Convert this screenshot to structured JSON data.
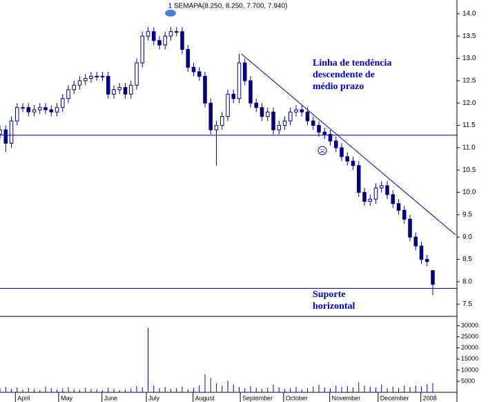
{
  "chart_data": {
    "type": "candlestick",
    "title": "1 SEMAPA(8.250, 8.250, 7.700, 7.940)",
    "color": "#000080",
    "x": [
      0,
      1,
      2,
      3,
      4,
      5,
      6,
      7,
      8,
      9,
      10,
      11,
      12,
      13,
      14,
      15,
      16,
      17,
      18,
      19,
      20,
      21,
      22,
      23,
      24,
      25,
      26,
      27,
      28,
      29,
      30,
      31,
      32,
      33,
      34,
      35,
      36,
      37,
      38,
      39,
      40,
      41,
      42,
      43,
      44,
      45,
      46,
      47,
      48,
      49,
      50,
      51,
      52,
      53,
      54,
      55,
      56,
      57,
      58,
      59,
      60,
      61,
      62,
      63,
      64,
      65,
      66,
      67,
      68,
      69,
      70,
      71,
      72,
      73,
      74,
      75,
      76
    ],
    "open": [
      11.3,
      11.4,
      11.1,
      11.6,
      11.9,
      11.9,
      11.8,
      11.85,
      11.9,
      11.85,
      11.8,
      11.9,
      12.1,
      12.3,
      12.4,
      12.5,
      12.55,
      12.6,
      12.6,
      12.6,
      12.2,
      12.3,
      12.35,
      12.2,
      12.4,
      12.9,
      13.5,
      13.6,
      13.4,
      13.3,
      13.5,
      13.6,
      13.6,
      13.2,
      12.8,
      12.7,
      12.6,
      12.0,
      11.4,
      11.5,
      11.7,
      12.2,
      12.1,
      12.9,
      12.5,
      12.0,
      11.9,
      11.7,
      11.8,
      11.4,
      11.5,
      11.6,
      11.8,
      11.85,
      11.8,
      11.6,
      11.5,
      11.35,
      11.3,
      11.15,
      11.0,
      10.8,
      10.7,
      10.6,
      10.0,
      9.8,
      9.85,
      10.1,
      10.15,
      9.95,
      9.75,
      9.6,
      9.4,
      9.0,
      8.8,
      8.5,
      8.25
    ],
    "high": [
      11.5,
      11.5,
      11.7,
      12.0,
      12.0,
      12.0,
      11.95,
      12.0,
      12.0,
      11.95,
      12.0,
      12.2,
      12.4,
      12.5,
      12.6,
      12.65,
      12.7,
      12.7,
      12.7,
      12.7,
      12.4,
      12.45,
      12.45,
      12.5,
      13.0,
      13.6,
      13.7,
      13.7,
      13.5,
      13.6,
      13.7,
      13.7,
      13.7,
      13.3,
      12.9,
      12.8,
      12.7,
      12.1,
      11.6,
      11.8,
      12.3,
      12.3,
      13.1,
      13.0,
      12.6,
      12.1,
      12.0,
      11.9,
      11.9,
      11.6,
      11.7,
      11.9,
      11.95,
      11.95,
      11.9,
      11.7,
      11.6,
      11.45,
      11.4,
      11.25,
      11.1,
      10.9,
      10.8,
      10.7,
      10.1,
      9.95,
      10.2,
      10.25,
      10.25,
      10.05,
      9.85,
      9.7,
      9.5,
      9.1,
      8.9,
      8.6,
      8.25
    ],
    "low": [
      11.2,
      10.9,
      11.0,
      11.5,
      11.8,
      11.7,
      11.7,
      11.75,
      11.75,
      11.7,
      11.7,
      11.8,
      12.0,
      12.2,
      12.3,
      12.4,
      12.45,
      12.5,
      12.5,
      12.1,
      12.1,
      12.2,
      12.1,
      12.1,
      12.3,
      12.8,
      13.4,
      13.3,
      13.2,
      13.2,
      13.4,
      13.5,
      13.1,
      12.7,
      12.6,
      12.5,
      11.9,
      11.3,
      10.6,
      11.4,
      11.6,
      12.0,
      12.0,
      12.4,
      11.9,
      11.8,
      11.6,
      11.6,
      11.3,
      11.3,
      11.4,
      11.5,
      11.7,
      11.7,
      11.5,
      11.4,
      11.25,
      11.2,
      11.05,
      10.9,
      10.7,
      10.6,
      10.5,
      9.9,
      9.7,
      9.7,
      9.75,
      10.0,
      9.85,
      9.65,
      9.5,
      9.3,
      8.9,
      8.7,
      8.4,
      8.35,
      7.7
    ],
    "close": [
      11.4,
      11.1,
      11.6,
      11.9,
      11.9,
      11.8,
      11.85,
      11.9,
      11.85,
      11.8,
      11.9,
      12.1,
      12.3,
      12.4,
      12.5,
      12.55,
      12.6,
      12.6,
      12.6,
      12.2,
      12.3,
      12.35,
      12.2,
      12.4,
      12.9,
      13.5,
      13.6,
      13.4,
      13.3,
      13.5,
      13.6,
      13.6,
      13.2,
      12.8,
      12.7,
      12.6,
      12.0,
      11.4,
      11.5,
      11.7,
      12.2,
      12.1,
      12.9,
      12.5,
      12.0,
      11.9,
      11.7,
      11.8,
      11.4,
      11.5,
      11.6,
      11.8,
      11.85,
      11.8,
      11.6,
      11.5,
      11.35,
      11.3,
      11.15,
      11.0,
      10.8,
      10.7,
      10.6,
      10.0,
      9.8,
      9.85,
      10.1,
      10.15,
      9.95,
      9.75,
      9.6,
      9.4,
      9.0,
      8.8,
      8.5,
      8.45,
      7.94
    ],
    "volume": [
      1800,
      2500,
      1500,
      2200,
      1200,
      2000,
      1500,
      1000,
      2600,
      1800,
      1200,
      1700,
      2300,
      1500,
      1200,
      2000,
      1600,
      1400,
      900,
      2100,
      1500,
      1000,
      1300,
      1700,
      2800,
      2200,
      29000,
      3000,
      1800,
      2400,
      1500,
      1900,
      2600,
      1400,
      2000,
      3200,
      8200,
      6500,
      4000,
      3000,
      5200,
      3500,
      2400,
      1800,
      2800,
      2100,
      1600,
      2000,
      3500,
      2200,
      1500,
      1800,
      2500,
      1400,
      1900,
      2600,
      3400,
      2200,
      1800,
      3000,
      2500,
      2800,
      2200,
      4500,
      3000,
      2600,
      2100,
      3500,
      1800,
      2600,
      2000,
      3100,
      2400,
      3000,
      2700,
      3800,
      4200
    ],
    "xlim": [
      0,
      80
    ],
    "xticks": [
      {
        "value": 2.7,
        "label": "April"
      },
      {
        "value": 10.3,
        "label": "May"
      },
      {
        "value": 17.9,
        "label": "June"
      },
      {
        "value": 25.7,
        "label": "July"
      },
      {
        "value": 33.9,
        "label": "August"
      },
      {
        "value": 42.2,
        "label": "September"
      },
      {
        "value": 49.8,
        "label": "October"
      },
      {
        "value": 57.9,
        "label": "November"
      },
      {
        "value": 66.4,
        "label": "December"
      },
      {
        "value": 73.9,
        "label": "2008"
      }
    ],
    "ylim": [
      7.24,
      14.23
    ],
    "yticks": [
      {
        "value": 14,
        "label": "14.0"
      },
      13.5,
      {
        "value": 13,
        "label": "13.0"
      },
      12.5,
      {
        "value": 12,
        "label": "12.0"
      },
      11.5,
      {
        "value": 11,
        "label": "11.0"
      },
      10.5,
      {
        "value": 10,
        "label": "10.0"
      },
      9.5,
      {
        "value": 9,
        "label": "9.0"
      },
      8.5,
      {
        "value": 8,
        "label": "8.0"
      },
      7.5
    ],
    "y2lim": [
      0,
      33000
    ],
    "y2ticks": [
      30000,
      25000,
      20000,
      15000,
      10000,
      5000
    ],
    "support_levels": [
      11.28,
      7.85
    ],
    "trendline": {
      "x": [
        42.4,
        80
      ],
      "y": [
        13.1,
        9.05
      ]
    },
    "annotations": [
      {
        "lines": [
          "Linha de tendência",
          "descendente de",
          "médio prazo"
        ]
      },
      {
        "lines": [
          "Suporte",
          "horizontal"
        ]
      }
    ]
  }
}
